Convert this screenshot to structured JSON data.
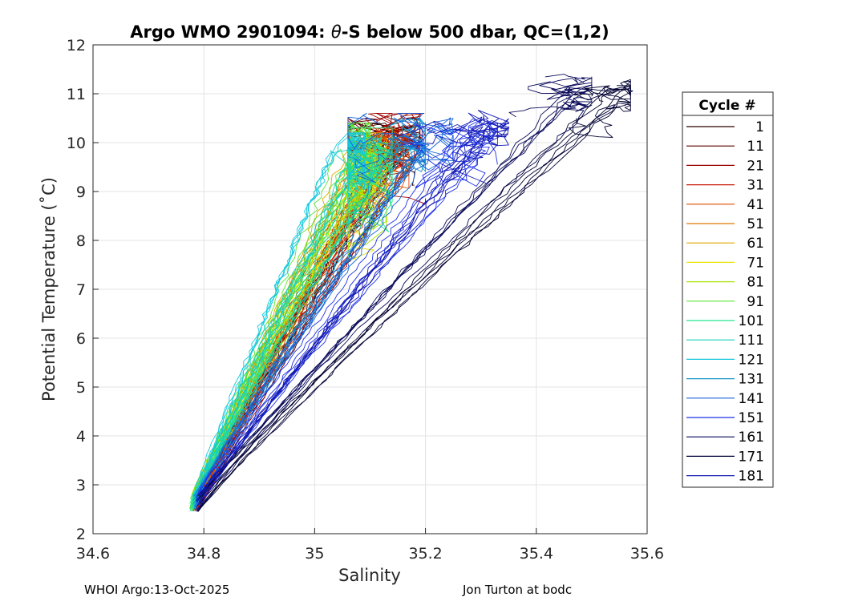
{
  "chart_data": {
    "type": "line",
    "title": "Argo WMO 2901094: θ-S below 500 dbar,  QC=(1,2)",
    "title_parts": {
      "prefix": "Argo WMO 2901094: ",
      "symbol": "θ",
      "suffix": "-S below 500 dbar,  QC=(1,2)"
    },
    "xlabel": "Salinity",
    "ylabel": "Potential Temperature (˚C)",
    "xlim": [
      34.6,
      35.6
    ],
    "ylim": [
      2,
      12
    ],
    "x_ticks": [
      "34.6",
      "34.8",
      "35",
      "35.2",
      "35.4",
      "35.6"
    ],
    "y_ticks": [
      "2",
      "3",
      "4",
      "5",
      "6",
      "7",
      "8",
      "9",
      "10",
      "11",
      "12"
    ],
    "grid": true,
    "legend_title": "Cycle #",
    "legend_position": "right",
    "series": [
      {
        "name": "1",
        "color": "#2d0000",
        "band": [
          34.82,
          35.36
        ],
        "s_min": 34.788,
        "s_max": 35.15,
        "t_top": 10.2,
        "hook": 0.3
      },
      {
        "name": "11",
        "color": "#5a0000",
        "band": [
          34.82,
          35.34
        ],
        "s_min": 34.788,
        "s_max": 35.16,
        "t_top": 10.3,
        "hook": 0.4
      },
      {
        "name": "21",
        "color": "#9a0000",
        "band": [
          34.81,
          35.3
        ],
        "s_min": 34.79,
        "s_max": 35.17,
        "t_top": 10.4,
        "hook": 0.4
      },
      {
        "name": "31",
        "color": "#c81400",
        "band": [
          34.8,
          35.26
        ],
        "s_min": 34.79,
        "s_max": 35.13,
        "t_top": 10.3,
        "hook": 0.5
      },
      {
        "name": "41",
        "color": "#dc4a00",
        "band": [
          34.8,
          35.22
        ],
        "s_min": 34.785,
        "s_max": 35.14,
        "t_top": 10.1,
        "hook": 0.5
      },
      {
        "name": "51",
        "color": "#e07800",
        "band": [
          34.79,
          35.18
        ],
        "s_min": 34.782,
        "s_max": 35.1,
        "t_top": 9.9,
        "hook": 0.6
      },
      {
        "name": "61",
        "color": "#e0a800",
        "band": [
          34.79,
          35.15
        ],
        "s_min": 34.78,
        "s_max": 35.09,
        "t_top": 10.0,
        "hook": 0.6
      },
      {
        "name": "71",
        "color": "#e6e600",
        "band": [
          34.78,
          35.12
        ],
        "s_min": 34.778,
        "s_max": 35.08,
        "t_top": 9.6,
        "hook": 0.7
      },
      {
        "name": "81",
        "color": "#a8e600",
        "band": [
          34.78,
          35.1
        ],
        "s_min": 34.778,
        "s_max": 35.1,
        "t_top": 9.8,
        "hook": 0.7
      },
      {
        "name": "91",
        "color": "#5ae632",
        "band": [
          34.78,
          35.08
        ],
        "s_min": 34.776,
        "s_max": 35.07,
        "t_top": 10.2,
        "hook": 0.7
      },
      {
        "name": "101",
        "color": "#1ee68c",
        "band": [
          34.78,
          35.08
        ],
        "s_min": 34.776,
        "s_max": 35.11,
        "t_top": 10.1,
        "hook": 0.6
      },
      {
        "name": "111",
        "color": "#14d2b4",
        "band": [
          34.78,
          35.1
        ],
        "s_min": 34.78,
        "s_max": 35.09,
        "t_top": 9.9,
        "hook": 0.6
      },
      {
        "name": "121",
        "color": "#14c8dc",
        "band": [
          34.78,
          35.12
        ],
        "s_min": 34.78,
        "s_max": 35.06,
        "t_top": 10.0,
        "hook": 0.5
      },
      {
        "name": "131",
        "color": "#1496c8",
        "band": [
          34.79,
          35.16
        ],
        "s_min": 34.782,
        "s_max": 35.17,
        "t_top": 10.3,
        "hook": 0.5
      },
      {
        "name": "141",
        "color": "#1464dc",
        "band": [
          34.79,
          35.2
        ],
        "s_min": 34.784,
        "s_max": 35.22,
        "t_top": 10.4,
        "hook": 0.4
      },
      {
        "name": "151",
        "color": "#1e32e6",
        "band": [
          34.8,
          35.24
        ],
        "s_min": 34.786,
        "s_max": 35.3,
        "t_top": 10.5,
        "hook": 0.4
      },
      {
        "name": "161",
        "color": "#0a0a5a",
        "band": [
          34.81,
          35.36
        ],
        "s_min": 34.79,
        "s_max": 35.47,
        "t_top": 11.2,
        "hook": 0.2
      },
      {
        "name": "171",
        "color": "#000032",
        "band": [
          34.82,
          35.42
        ],
        "s_min": 34.79,
        "s_max": 35.54,
        "t_top": 11.25,
        "hook": 0.2
      },
      {
        "name": "181",
        "color": "#1419b4",
        "band": [
          34.8,
          35.28
        ],
        "s_min": 34.786,
        "s_max": 35.32,
        "t_top": 10.6,
        "hook": 0.3
      }
    ]
  },
  "footer": {
    "left": "WHOI Argo:13-Oct-2025",
    "right": "Jon Turton at bodc"
  }
}
